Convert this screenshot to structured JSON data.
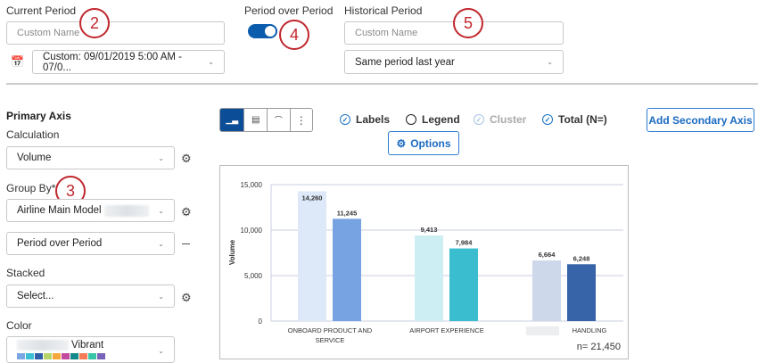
{
  "current_period": {
    "label": "Current Period",
    "name_placeholder": "Custom Name",
    "date_range": "Custom: 09/01/2019 5:00 AM - 07/0..."
  },
  "period_over_period": {
    "label": "Period over Period",
    "enabled": true
  },
  "historical_period": {
    "label": "Historical Period",
    "name_placeholder": "Custom Name",
    "range": "Same period last year"
  },
  "annotations": [
    "2",
    "3",
    "4",
    "5"
  ],
  "primary_axis": {
    "title": "Primary Axis",
    "calculation_label": "Calculation",
    "calculation": "Volume",
    "group_by_label": "Group By*",
    "group_by": "Airline Main Model",
    "group_by_2": "Period over Period",
    "stacked_label": "Stacked",
    "stacked": "Select...",
    "color_label": "Color",
    "color": "Vibrant",
    "palette": [
      "#7aa6e4",
      "#3bbfd4",
      "#2f5fa8",
      "#b5d56a",
      "#f6a73b",
      "#c24b9e",
      "#138a8a",
      "#f57c56",
      "#36c5a8",
      "#7a62b8"
    ]
  },
  "toolbar": {
    "chart_types": [
      "column-chart-icon",
      "bar-chart-icon",
      "line-chart-icon",
      "more-icon"
    ],
    "labels": "Labels",
    "legend": "Legend",
    "cluster": "Cluster",
    "total": "Total (N=)",
    "options": "Options",
    "add_secondary": "Add Secondary Axis"
  },
  "chart_data": {
    "type": "bar",
    "ylabel": "Volume",
    "ylim": [
      0,
      15000
    ],
    "yticks": [
      "15,000",
      "10,000",
      "5,000",
      "0"
    ],
    "ytick_values": [
      15000,
      10000,
      5000,
      0
    ],
    "grid": true,
    "categories": [
      [
        "ONBOARD PRODUCT AND",
        "SERVICE"
      ],
      [
        "AIRPORT EXPERIENCE"
      ],
      [
        "HANDLING"
      ]
    ],
    "groups": [
      {
        "values": [
          14260,
          11245
        ],
        "labels": [
          "14,260",
          "11,245"
        ],
        "colors": [
          "#dde8f8",
          "#78a3e2"
        ]
      },
      {
        "values": [
          9413,
          7984
        ],
        "labels": [
          "9,413",
          "7,984"
        ],
        "colors": [
          "#cdeef3",
          "#3bbdd0"
        ]
      },
      {
        "values": [
          6664,
          6248
        ],
        "labels": [
          "6,664",
          "6,248"
        ],
        "colors": [
          "#cdd9ea",
          "#3763a8"
        ]
      }
    ],
    "total": "n= 21,450"
  }
}
